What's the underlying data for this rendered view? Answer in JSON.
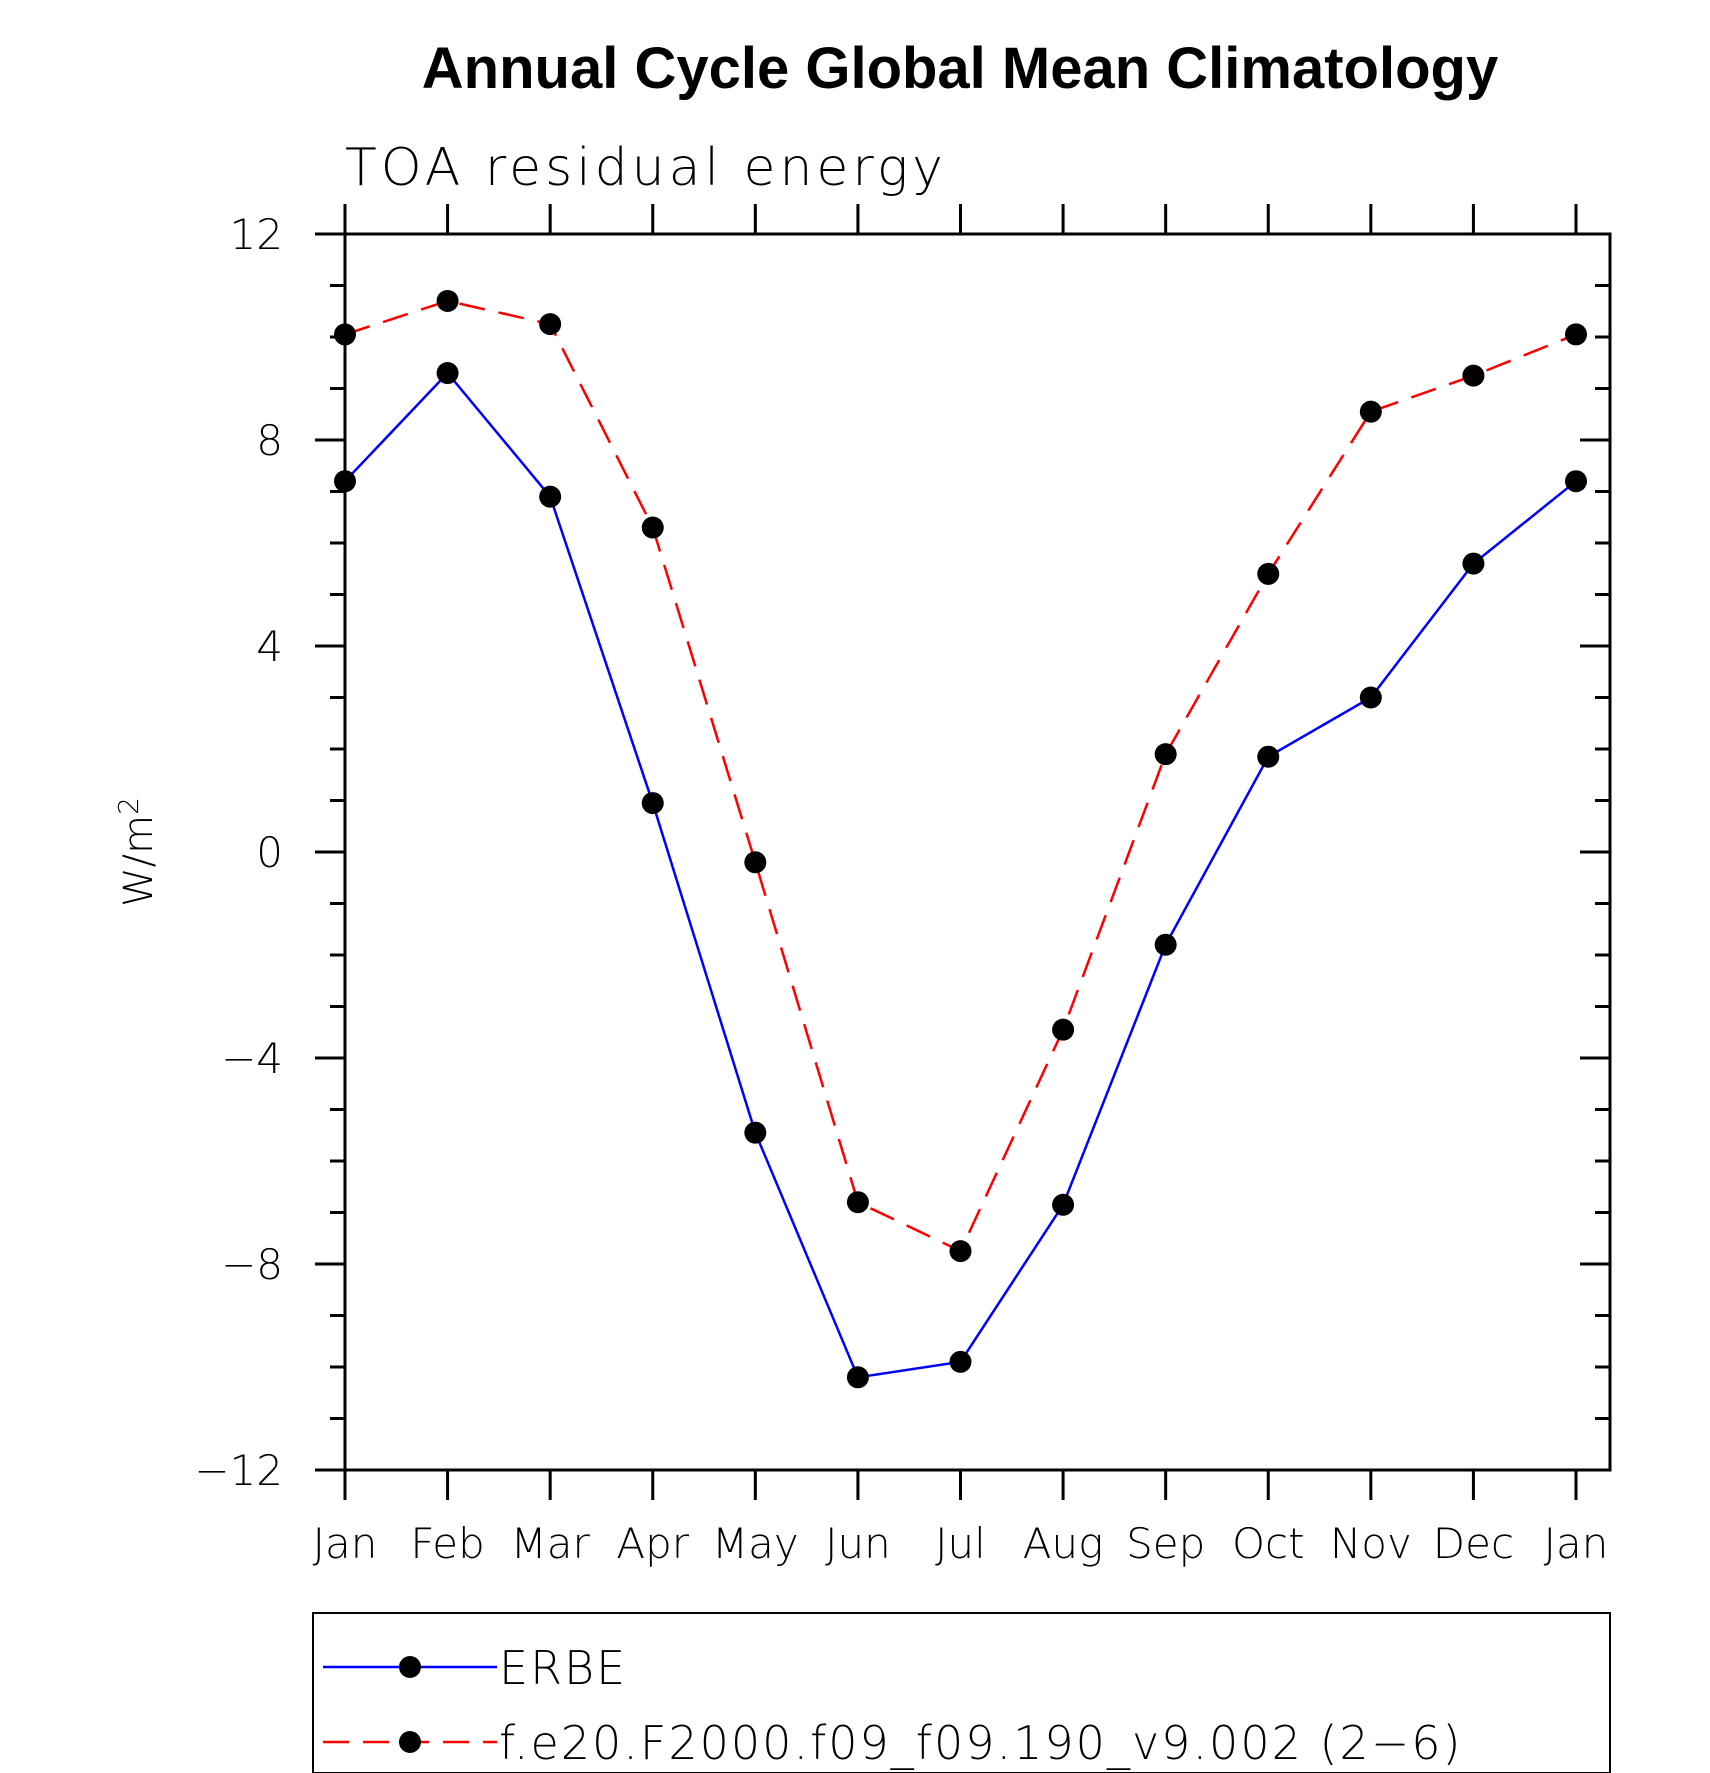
{
  "chart_data": {
    "type": "line",
    "title": "Annual Cycle Global Mean Climatology",
    "subtitle": "TOA residual energy",
    "ylabel": "W/m",
    "ylabel_superscript": "2",
    "xlabel": "",
    "categories": [
      "Jan",
      "Feb",
      "Mar",
      "Apr",
      "May",
      "Jun",
      "Jul",
      "Aug",
      "Sep",
      "Oct",
      "Nov",
      "Dec",
      "Jan"
    ],
    "ylim": [
      -12,
      12
    ],
    "yticks": [
      -12,
      -8,
      -4,
      0,
      4,
      8,
      12
    ],
    "ytick_labels": [
      "−12",
      "−8",
      "−4",
      "0",
      "4",
      "8",
      "12"
    ],
    "y_minor_step": 1,
    "grid": false,
    "legend_position": "bottom",
    "series": [
      {
        "name": "ERBE",
        "color": "#0000ff",
        "dash": "solid",
        "marker": "filled-circle",
        "values": [
          7.2,
          9.3,
          6.9,
          0.95,
          -5.45,
          -10.2,
          -9.9,
          -6.85,
          -1.8,
          1.85,
          3.0,
          5.6,
          7.2
        ]
      },
      {
        "name": "f.e20.F2000.f09_f09.190_v9.002 (2−6)",
        "color": "#ff0000",
        "dash": "dashed",
        "marker": "filled-circle",
        "values": [
          10.05,
          10.7,
          10.25,
          6.3,
          -0.2,
          -6.8,
          -7.75,
          -3.45,
          1.9,
          5.4,
          8.55,
          9.25,
          10.05
        ]
      }
    ]
  }
}
